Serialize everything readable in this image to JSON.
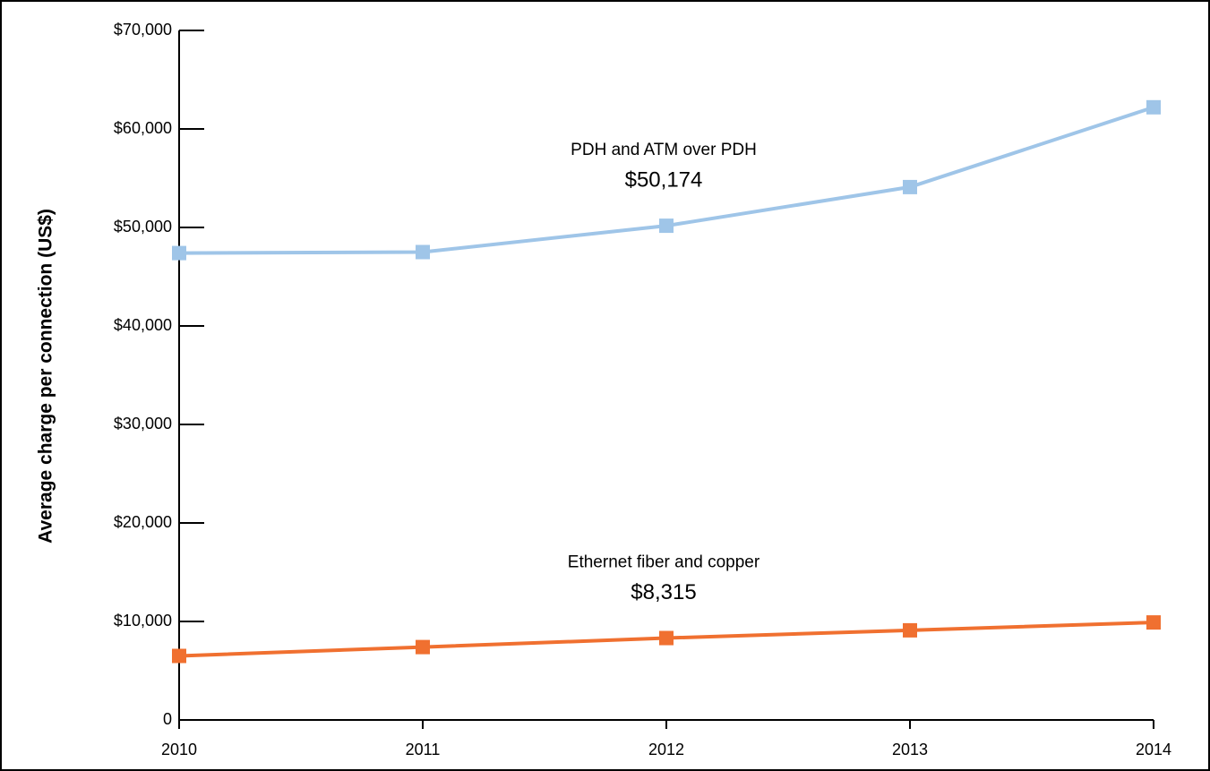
{
  "chart_data": {
    "type": "line",
    "y_label": "Average charge per connection (US$)",
    "categories": [
      "2010",
      "2011",
      "2012",
      "2013",
      "2014"
    ],
    "series": [
      {
        "name": "PDH and ATM over PDH",
        "color": "#9fc5e8",
        "values": [
          47400,
          47500,
          50174,
          54100,
          62200
        ],
        "value_label": "$50,174",
        "label_at": 2
      },
      {
        "name": "Ethernet fiber and copper",
        "color": "#f07030",
        "values": [
          6500,
          7400,
          8315,
          9100,
          9900
        ],
        "value_label": "$8,315",
        "label_at": 2
      }
    ],
    "ylim": [
      0,
      70000
    ],
    "yticks": [
      0,
      {
        "value": 10000,
        "label": "$10,000"
      },
      {
        "value": 20000,
        "label": "$20,000"
      },
      {
        "value": 30000,
        "label": "$30,000"
      },
      {
        "value": 40000,
        "label": "$40,000"
      },
      {
        "value": 50000,
        "label": "$50,000"
      },
      {
        "value": 60000,
        "label": "$60,000"
      },
      {
        "value": 70000,
        "label": "$70,000"
      }
    ],
    "grid": false
  }
}
